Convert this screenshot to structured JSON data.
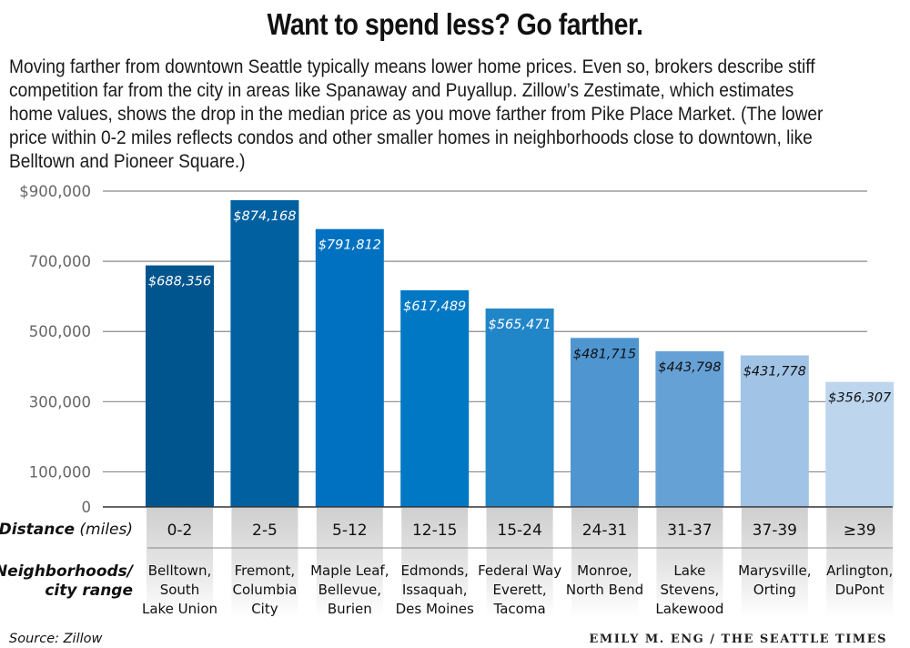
{
  "title": "Want to spend less? Go farther.",
  "intro": "Moving farther from downtown Seattle typically means lower home prices. Even so, brokers describe stiff competition far from the city in areas like Spanaway and Puyallup. Zillow’s Zestimate, which estimates home values, shows the drop in the median price as you move farther from Pike Place Market. (The lower price within 0-2 miles reflects condos and other smaller homes in neighborhoods close to downtown, like Belltown and Pioneer Square.)",
  "source": "Source: Zillow",
  "credit": "EMILY M. ENG / THE SEATTLE TIMES",
  "chart_data": {
    "type": "bar",
    "title": "Want to spend less? Go farther.",
    "xlabel": "Distance (miles)",
    "ylabel": "",
    "ylim": [
      0,
      900000
    ],
    "grid": true,
    "yticks": [
      {
        "value": 900000,
        "label": "$900,000"
      },
      {
        "value": 700000,
        "label": "700,000"
      },
      {
        "value": 500000,
        "label": "500,000"
      },
      {
        "value": 300000,
        "label": "300,000"
      },
      {
        "value": 100000,
        "label": "100,000"
      },
      {
        "value": 0,
        "label": "0"
      }
    ],
    "row_headers": {
      "distance_main": "Distance",
      "distance_unit": " (miles)",
      "neighborhoods_line1": "Neighborhoods/",
      "neighborhoods_line2": "city range"
    },
    "categories": [
      "0-2",
      "2-5",
      "5-12",
      "12-15",
      "15-24",
      "24-31",
      "31-37",
      "37-39",
      "≥39"
    ],
    "values": [
      688356,
      874168,
      791812,
      617489,
      565471,
      481715,
      443798,
      431778,
      356307
    ],
    "value_labels": [
      "$688,356",
      "$874,168",
      "$791,812",
      "$617,489",
      "$565,471",
      "$481,715",
      "$443,798",
      "$431,778",
      "$356,307"
    ],
    "bar_colors": [
      "#00558e",
      "#0060a0",
      "#0071c1",
      "#0078c4",
      "#2186c8",
      "#4f95d0",
      "#66a1d5",
      "#a1c3e6",
      "#bdd6ee"
    ],
    "label_colors": [
      "#ffffff",
      "#ffffff",
      "#ffffff",
      "#ffffff",
      "#ffffff",
      "#111111",
      "#111111",
      "#111111",
      "#111111"
    ],
    "neighborhoods": [
      [
        "Belltown,",
        "South",
        "Lake Union"
      ],
      [
        "Fremont,",
        "Columbia",
        "City"
      ],
      [
        "Maple Leaf,",
        "Bellevue,",
        "Burien"
      ],
      [
        "Edmonds,",
        "Issaquah,",
        "Des Moines"
      ],
      [
        "Federal Way",
        "Everett,",
        "Tacoma"
      ],
      [
        "Monroe,",
        "North Bend"
      ],
      [
        "Lake",
        "Stevens,",
        "Lakewood"
      ],
      [
        "Marysville,",
        "Orting"
      ],
      [
        "Arlington,",
        "DuPont"
      ]
    ]
  }
}
